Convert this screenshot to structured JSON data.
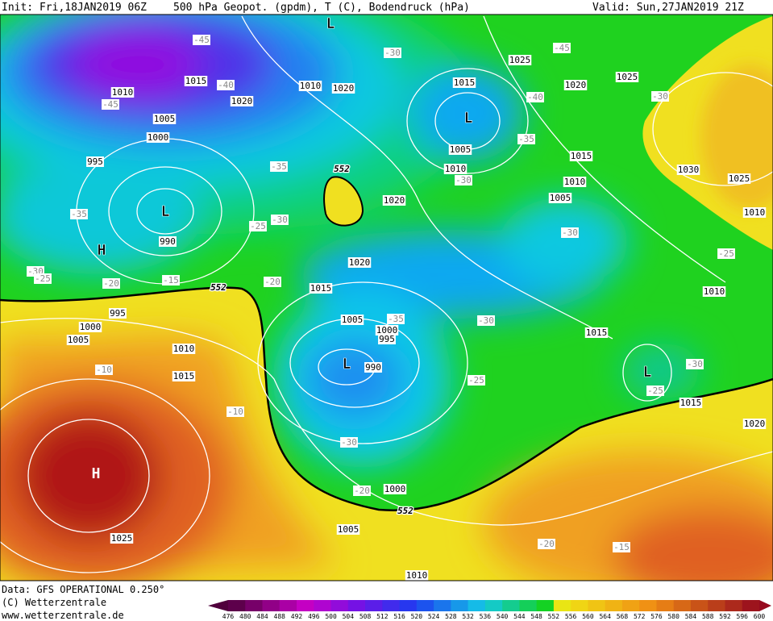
{
  "header": {
    "init": "Init: Fri,18JAN2019 06Z",
    "title": "500 hPa Geopot. (gpdm), T (C), Bodendruck (hPa)",
    "valid": "Valid: Sun,27JAN2019 21Z"
  },
  "footer": {
    "data": "Data: GFS OPERATIONAL 0.250°",
    "copyright": "(C) Wetterzentrale",
    "url": "www.wetterzentrale.de"
  },
  "map": {
    "pressure_labels": [
      "1010",
      "1015",
      "1020",
      "1005",
      "1000",
      "995",
      "990",
      "1010",
      "1020",
      "1025",
      "1015",
      "1020",
      "1025",
      "1005",
      "1010",
      "1015",
      "1010",
      "1005",
      "1030",
      "1025",
      "1010",
      "1020",
      "1020",
      "1015",
      "1010",
      "995",
      "1000",
      "1005",
      "1010",
      "1015",
      "1005",
      "1000",
      "995",
      "990",
      "1015",
      "1015",
      "1020",
      "1000",
      "1005",
      "1010",
      "1025"
    ],
    "temperature_labels": [
      "-45",
      "-45",
      "-40",
      "-45",
      "-40",
      "-30",
      "-30",
      "-35",
      "-35",
      "-30",
      "-35",
      "-30",
      "-25",
      "-30",
      "-30",
      "-25",
      "-20",
      "-15",
      "-20",
      "-25",
      "-35",
      "-30",
      "-30",
      "-25",
      "-25",
      "-10",
      "-10",
      "-30",
      "-20",
      "-20",
      "-15"
    ],
    "centers": [
      "L",
      "L",
      "L",
      "H",
      "L",
      "L",
      "H"
    ],
    "contour_labels": [
      "552",
      "552",
      "552"
    ]
  },
  "colorbar": {
    "labels": [
      476,
      480,
      484,
      488,
      492,
      496,
      500,
      504,
      508,
      512,
      516,
      520,
      524,
      528,
      532,
      536,
      540,
      544,
      548,
      552,
      556,
      560,
      564,
      568,
      572,
      576,
      580,
      584,
      588,
      592,
      596,
      600
    ]
  }
}
